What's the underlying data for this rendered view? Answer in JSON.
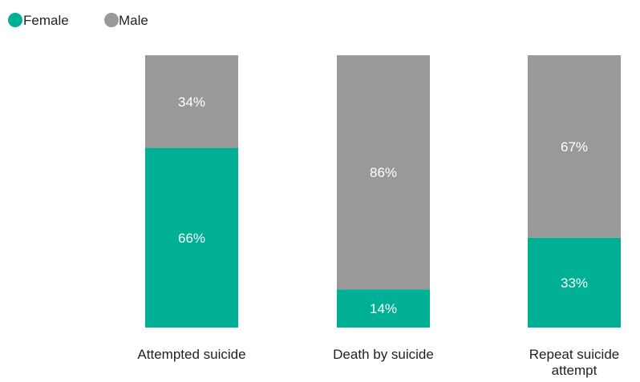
{
  "legend": {
    "items": [
      {
        "label": "Female",
        "color": "#00b094"
      },
      {
        "label": "Male",
        "color": "#999999"
      }
    ]
  },
  "chart_data": {
    "type": "bar",
    "stacked": true,
    "percent": true,
    "categories": [
      "Attempted suicide",
      "Death by suicide",
      "Repeat suicide attempt"
    ],
    "series": [
      {
        "name": "Female",
        "values": [
          66,
          14,
          33
        ],
        "labels": [
          "66%",
          "14%",
          "33%"
        ],
        "color": "#00b094"
      },
      {
        "name": "Male",
        "values": [
          34,
          86,
          67
        ],
        "labels": [
          "34%",
          "86%",
          "67%"
        ],
        "color": "#999999"
      }
    ],
    "ylim": [
      0,
      100
    ],
    "grid": false,
    "legend_position": "top-left"
  }
}
